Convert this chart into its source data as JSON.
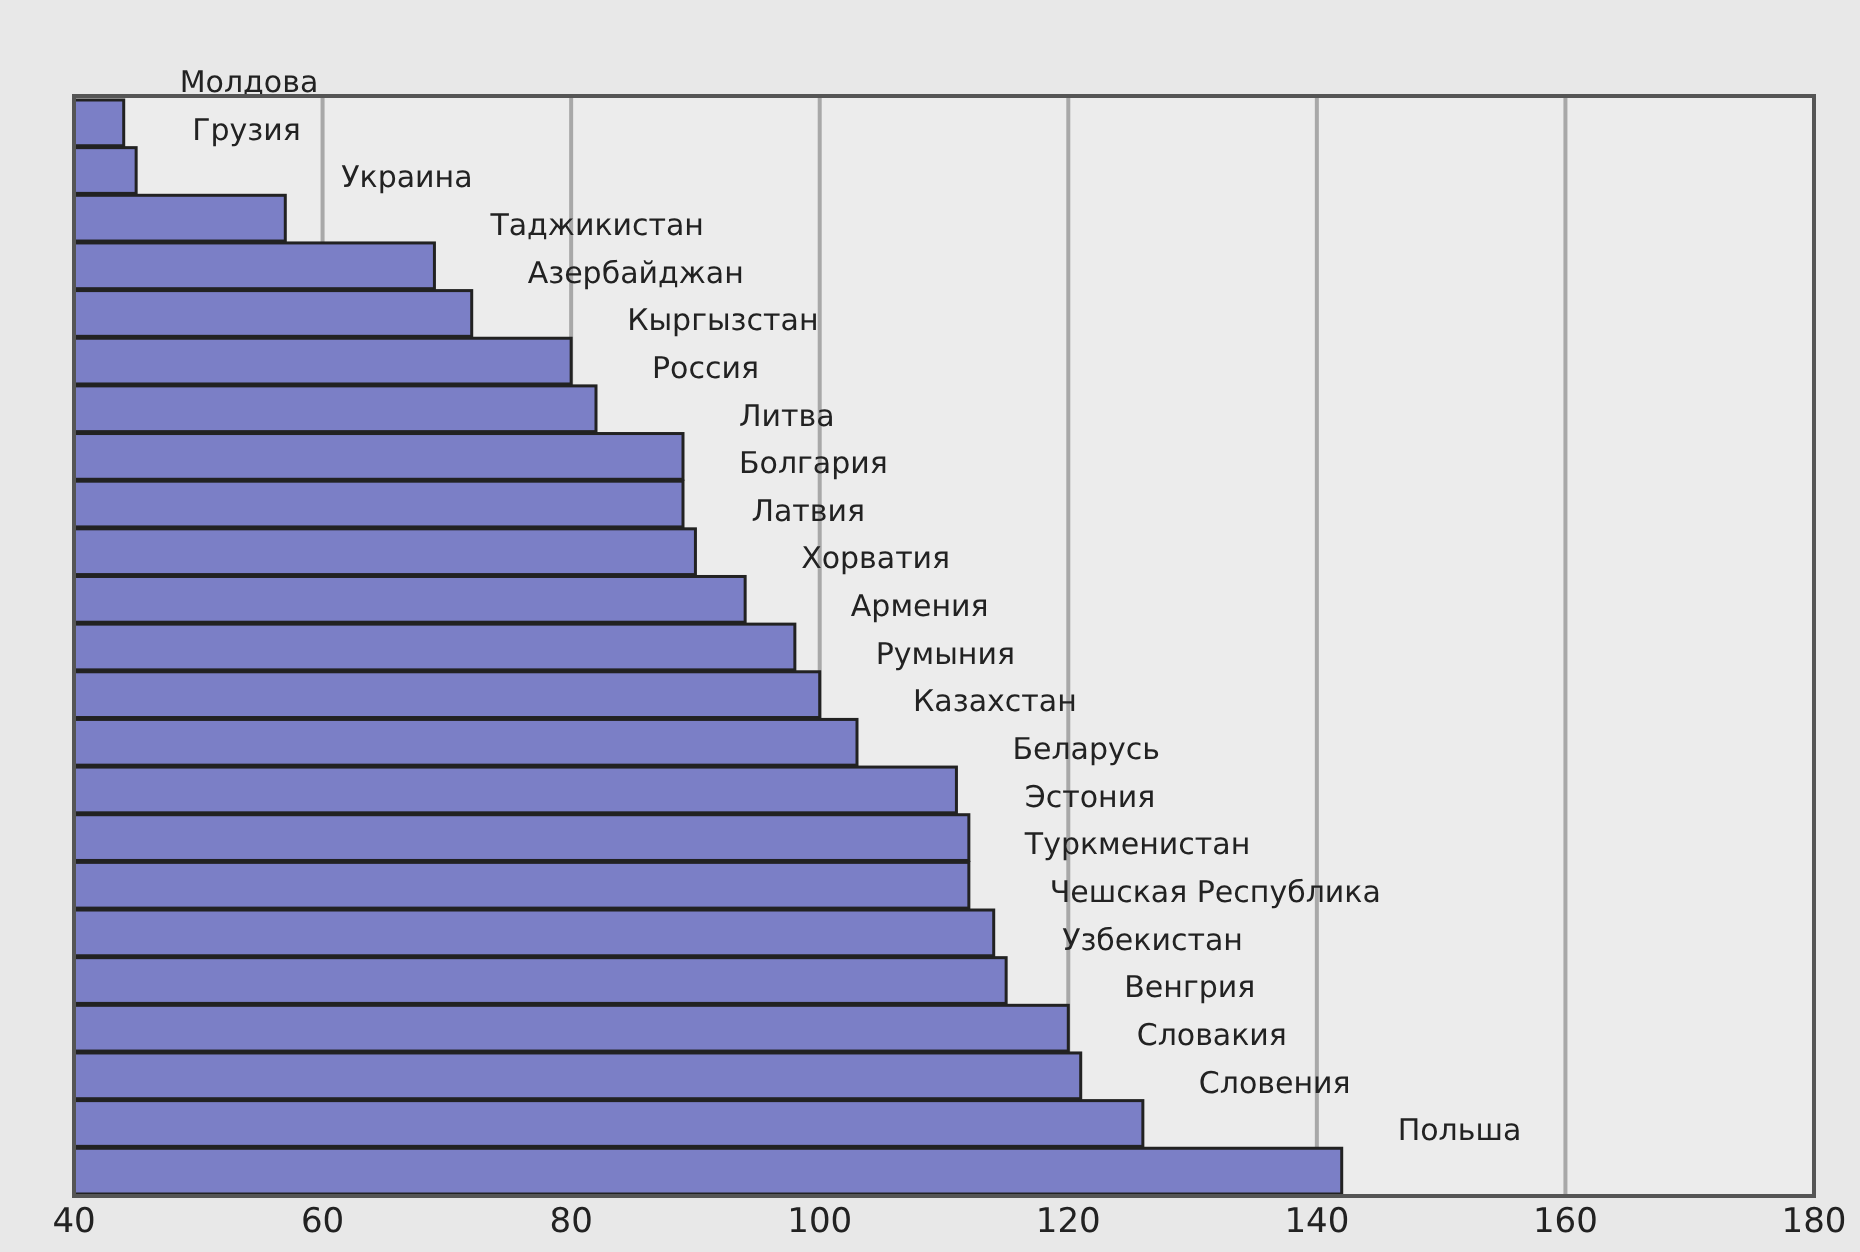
{
  "chart_data": {
    "type": "bar",
    "orientation": "horizontal",
    "categories": [
      "Молдова",
      "Грузия",
      "Украина",
      "Таджикистан",
      "Азербайджан",
      "Кыргызстан",
      "Россия",
      "Литва",
      "Болгария",
      "Латвия",
      "Хорватия",
      "Армения",
      "Румыния",
      "Казахстан",
      "Беларусь",
      "Эстония",
      "Туркменистан",
      "Чешская Республика",
      "Узбекистан",
      "Венгрия",
      "Словакия",
      "Словения",
      "Польша"
    ],
    "values": [
      44,
      45,
      57,
      69,
      72,
      80,
      82,
      89,
      89,
      90,
      94,
      98,
      100,
      103,
      111,
      112,
      112,
      114,
      115,
      120,
      121,
      126,
      142
    ],
    "color": "#7b7fc6",
    "xlim": [
      40,
      180
    ],
    "xticks": [
      40,
      60,
      80,
      100,
      120,
      140,
      160,
      180
    ],
    "grid": "x",
    "tick_labels": "x"
  }
}
